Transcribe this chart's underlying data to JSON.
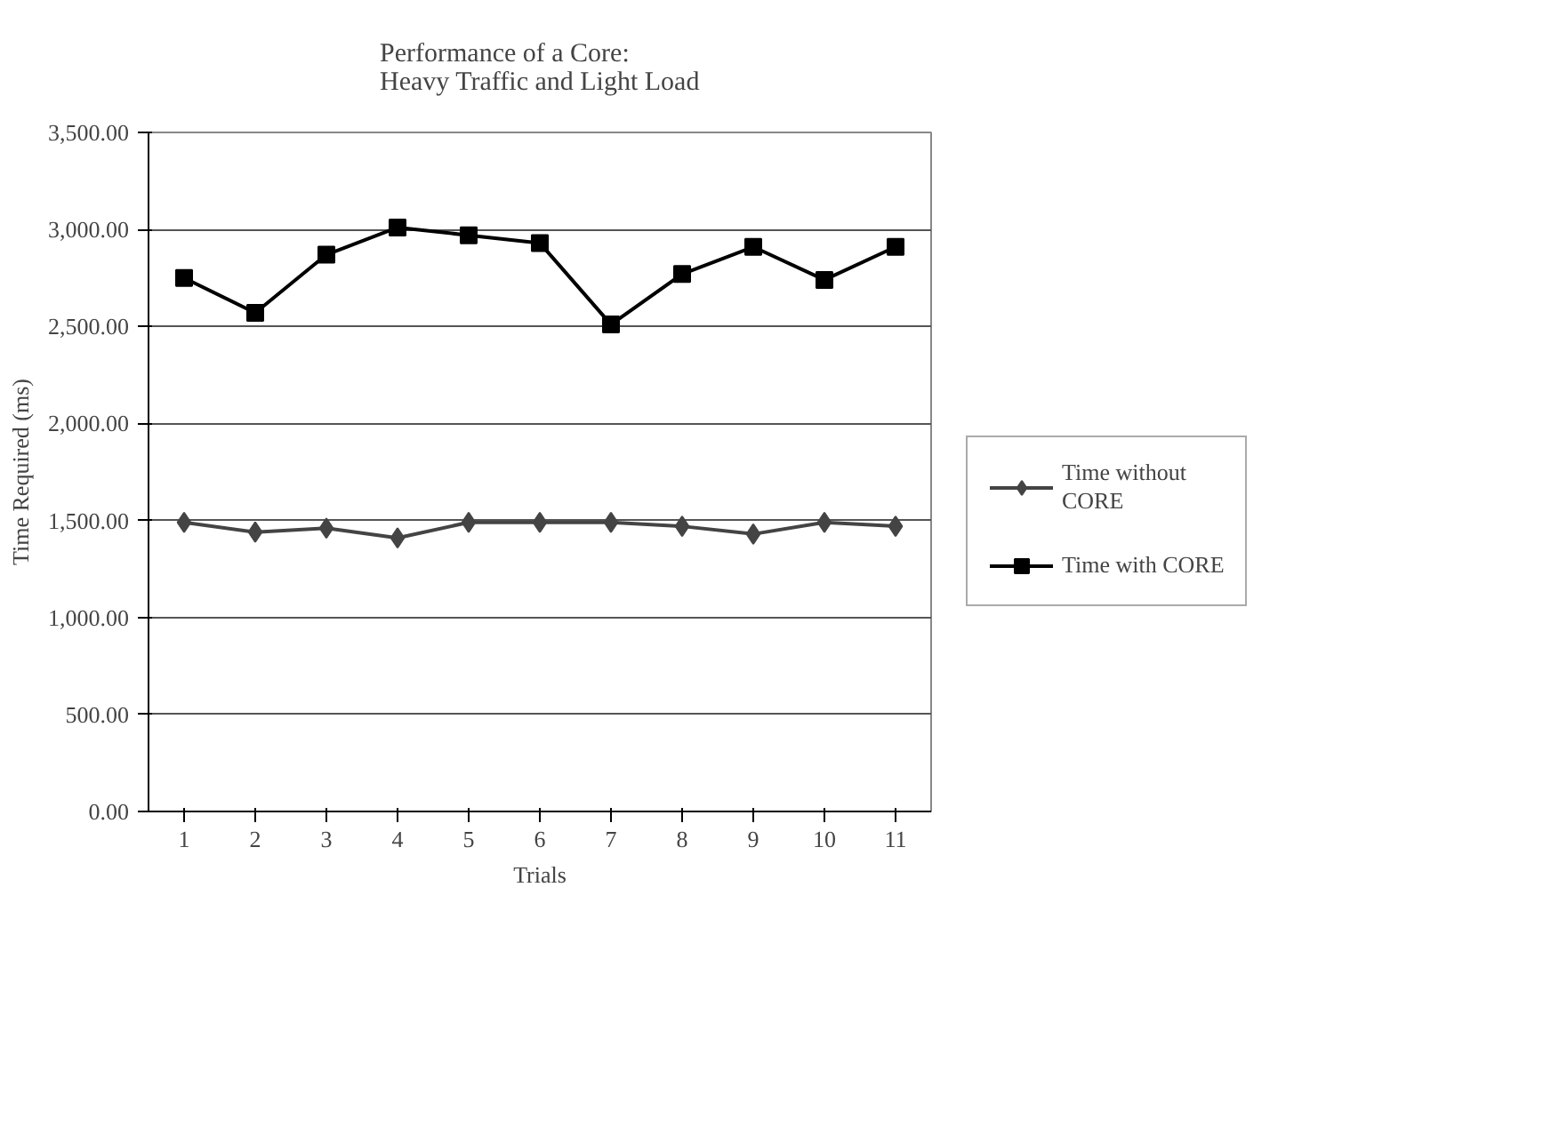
{
  "chart_data": {
    "type": "line",
    "title": "Performance of a Core:\nHeavy Traffic and Light Load",
    "xlabel": "Trials",
    "ylabel": "Time Required (ms)",
    "categories": [
      "1",
      "2",
      "3",
      "4",
      "5",
      "6",
      "7",
      "8",
      "9",
      "10",
      "11"
    ],
    "series": [
      {
        "name": "Time without\nCORE",
        "color": "#444444",
        "marker": "diamond",
        "values": [
          1490,
          1440,
          1460,
          1410,
          1490,
          1490,
          1490,
          1470,
          1430,
          1490,
          1470
        ]
      },
      {
        "name": "Time with CORE",
        "color": "#000000",
        "marker": "square",
        "values": [
          2750,
          2570,
          2870,
          3010,
          2970,
          2930,
          2510,
          2770,
          2910,
          2740,
          2910
        ]
      }
    ],
    "ylim": [
      0,
      3500
    ],
    "yticks": [
      {
        "value": 0,
        "label": "0.00"
      },
      {
        "value": 500,
        "label": "500.00"
      },
      {
        "value": 1000,
        "label": "1,000.00"
      },
      {
        "value": 1500,
        "label": "1,500.00"
      },
      {
        "value": 2000,
        "label": "2,000.00"
      },
      {
        "value": 2500,
        "label": "2,500.00"
      },
      {
        "value": 3000,
        "label": "3,000.00"
      },
      {
        "value": 3500,
        "label": "3,500.00"
      }
    ],
    "grid": "y",
    "legend": "right",
    "line_style": "solid"
  }
}
